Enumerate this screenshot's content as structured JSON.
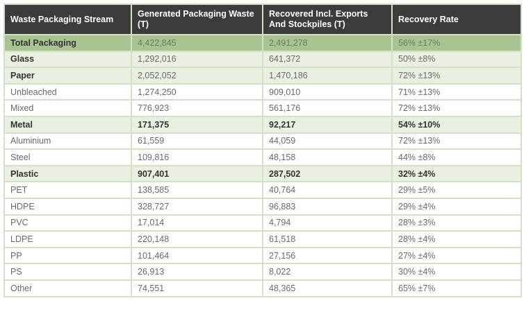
{
  "headers": [
    "Waste Packaging Stream",
    "Generated Packaging Waste (T)",
    "Recovered Incl. Exports And Stockpiles (T)",
    "Recovery Rate"
  ],
  "rows": [
    {
      "type": "total",
      "cells": [
        "Total Packaging",
        "4,422,845",
        "2,491,278",
        "56% ±17%"
      ]
    },
    {
      "type": "cat",
      "cells": [
        "Glass",
        "1,292,016",
        "641,372",
        "50% ±8%"
      ]
    },
    {
      "type": "cat",
      "cells": [
        "Paper",
        "2,052,052",
        "1,470,186",
        "72% ±13%"
      ]
    },
    {
      "type": "sub",
      "cells": [
        "Unbleached",
        "1,274,250",
        "909,010",
        "71% ±13%"
      ]
    },
    {
      "type": "sub",
      "cells": [
        "Mixed",
        "776,923",
        "561,176",
        "72% ±13%"
      ]
    },
    {
      "type": "bold",
      "cells": [
        "Metal",
        "171,375",
        "92,217",
        "54% ±10%"
      ]
    },
    {
      "type": "sub",
      "cells": [
        "Aluminium",
        "61,559",
        "44,059",
        "72% ±13%"
      ]
    },
    {
      "type": "sub",
      "cells": [
        "Steel",
        "109,816",
        "48,158",
        "44% ±8%"
      ]
    },
    {
      "type": "bold",
      "cells": [
        "Plastic",
        "907,401",
        "287,502",
        "32% ±4%"
      ]
    },
    {
      "type": "sub",
      "cells": [
        "PET",
        "138,585",
        "40,764",
        "29% ±5%"
      ]
    },
    {
      "type": "sub",
      "cells": [
        "HDPE",
        "328,727",
        "96,883",
        "29% ±4%"
      ]
    },
    {
      "type": "sub",
      "cells": [
        "PVC",
        "17,014",
        "4,794",
        "28% ±3%"
      ]
    },
    {
      "type": "sub",
      "cells": [
        "LDPE",
        "220,148",
        "61,518",
        "28% ±4%"
      ]
    },
    {
      "type": "sub",
      "cells": [
        "PP",
        "101,464",
        "27,156",
        "27% ±4%"
      ]
    },
    {
      "type": "sub",
      "cells": [
        "PS",
        "26,913",
        "8,022",
        "30% ±4%"
      ]
    },
    {
      "type": "sub",
      "cells": [
        "Other",
        "74,551",
        "48,365",
        "65% ±7%"
      ]
    }
  ]
}
